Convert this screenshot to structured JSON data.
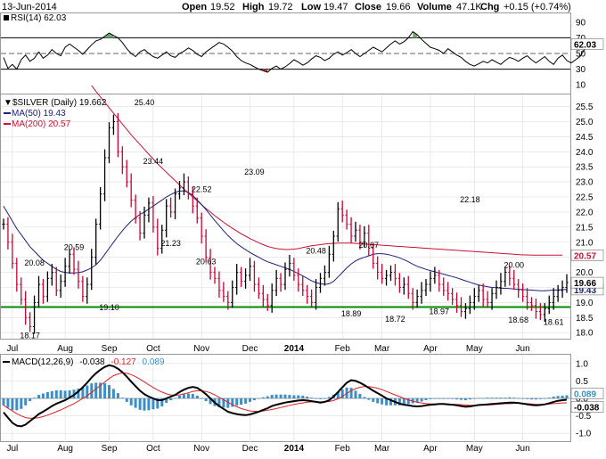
{
  "header": {
    "date": "13-Jun-2014",
    "open_label": "Open",
    "open": "19.52",
    "high_label": "High",
    "high": "19.72",
    "low_label": "Low",
    "low": "19.47",
    "close_label": "Close",
    "close": "19.66",
    "volume_label": "Volume",
    "volume": "47.1K",
    "chg_label": "Chg",
    "chg": "+0.15 (+0.74%)"
  },
  "colors": {
    "price_up": "#000000",
    "price_down": "#cc0033",
    "ma50": "#1a237e",
    "ma200": "#cc1133",
    "support": "#008800",
    "macd_line": "#000000",
    "signal_line": "#dd2222",
    "histogram": "#3a8fc8",
    "rsi_overbought_fill": "#6ea86e",
    "rsi_oversold_fill": "#cc3333",
    "grid": "#dddddd"
  },
  "chart_data": [
    {
      "type": "line",
      "panel": "RSI",
      "legend": "RSI(14) 62.03",
      "current_value_tag": "62.03",
      "y_ticks": [
        "90",
        "70",
        "50",
        "30",
        "10"
      ],
      "reference_lines": [
        70,
        30
      ],
      "midline": 50,
      "ylim": [
        0,
        100
      ],
      "values": [
        45,
        31,
        36,
        30,
        42,
        48,
        40,
        44,
        52,
        44,
        48,
        55,
        50,
        47,
        58,
        62,
        58,
        54,
        49,
        55,
        61,
        66,
        68,
        72,
        76,
        73,
        70,
        64,
        56,
        50,
        46,
        52,
        55,
        50,
        46,
        44,
        48,
        52,
        47,
        45,
        50,
        53,
        57,
        54,
        49,
        46,
        52,
        56,
        60,
        64,
        62,
        58,
        53,
        46,
        41,
        38,
        36,
        33,
        30,
        28,
        26,
        31,
        34,
        30,
        33,
        37,
        42,
        39,
        35,
        38,
        43,
        47,
        45,
        41,
        44,
        49,
        52,
        48,
        51,
        55,
        50,
        46,
        50,
        54,
        58,
        55,
        52,
        57,
        62,
        66,
        62,
        65,
        70,
        78,
        74,
        68,
        63,
        58,
        56,
        54,
        50,
        56,
        52,
        48,
        45,
        40,
        36,
        34,
        37,
        40,
        38,
        42,
        39,
        36,
        41,
        45,
        43,
        40,
        44,
        47,
        42,
        38,
        42,
        46,
        40,
        36,
        44,
        48,
        41,
        38,
        42,
        46,
        55,
        62
      ]
    },
    {
      "type": "line",
      "panel": "price",
      "legend": "$SILVER (Daily) 19.662",
      "ma_legends": [
        "MA(50) 19.43",
        "MA(200) 20.57"
      ],
      "y_ticks": [
        "25.5",
        "25.0",
        "24.5",
        "24.0",
        "23.5",
        "23.0",
        "22.5",
        "22.0",
        "21.5",
        "21.0",
        "20.5",
        "20.0",
        "19.5",
        "19.0",
        "18.5",
        "18.0"
      ],
      "ylim": [
        17.8,
        25.9
      ],
      "price_tags": [
        "19.66",
        "19.43",
        "20.57"
      ],
      "support_level": 18.85,
      "x_month_labels": [
        "Jul",
        "Aug",
        "Sep",
        "Oct",
        "Nov",
        "Dec",
        "2014",
        "Feb",
        "Mar",
        "Apr",
        "May",
        "Jun"
      ],
      "x_month_positions": [
        2,
        14,
        24,
        34,
        45,
        56,
        66,
        77,
        86,
        97,
        107,
        118
      ],
      "close": [
        21.6,
        21.0,
        20.3,
        19.6,
        19.1,
        18.5,
        18.2,
        19.0,
        19.6,
        19.2,
        19.8,
        20.0,
        19.4,
        19.7,
        20.2,
        20.6,
        20.1,
        19.7,
        19.2,
        19.6,
        20.5,
        21.6,
        22.6,
        23.8,
        24.8,
        25.0,
        24.0,
        23.5,
        23.0,
        22.4,
        21.8,
        21.3,
        21.9,
        22.3,
        21.5,
        20.8,
        21.4,
        22.2,
        22.0,
        22.6,
        22.8,
        23.0,
        22.6,
        22.2,
        21.8,
        21.2,
        20.5,
        20.0,
        19.8,
        19.4,
        19.2,
        19.0,
        19.5,
        20.0,
        19.7,
        19.9,
        20.2,
        19.6,
        19.3,
        19.1,
        18.9,
        19.4,
        19.8,
        19.6,
        20.1,
        20.3,
        19.9,
        19.6,
        19.4,
        19.2,
        19.0,
        19.5,
        19.8,
        20.0,
        20.6,
        21.2,
        22.1,
        21.9,
        21.6,
        21.2,
        21.4,
        21.0,
        21.3,
        20.8,
        20.3,
        20.0,
        19.8,
        19.9,
        20.0,
        19.8,
        19.5,
        19.6,
        19.3,
        19.0,
        19.2,
        19.4,
        19.6,
        19.8,
        19.9,
        19.6,
        19.4,
        19.3,
        19.1,
        18.9,
        18.7,
        18.8,
        19.0,
        19.2,
        19.4,
        19.1,
        19.0,
        19.3,
        19.5,
        19.7,
        20.0,
        19.8,
        19.6,
        19.4,
        19.2,
        19.0,
        18.9,
        18.7,
        18.6,
        18.8,
        19.0,
        19.2,
        19.4,
        19.5,
        19.66
      ],
      "ma50": [
        22.2,
        21.95,
        21.7,
        21.45,
        21.25,
        21.05,
        20.85,
        20.7,
        20.55,
        20.4,
        20.3,
        20.2,
        20.1,
        20.03,
        20.0,
        19.98,
        19.98,
        19.99,
        20.02,
        20.08,
        20.15,
        20.25,
        20.4,
        20.6,
        20.8,
        21.0,
        21.2,
        21.38,
        21.55,
        21.7,
        21.82,
        21.92,
        22.0,
        22.1,
        22.2,
        22.3,
        22.4,
        22.5,
        22.58,
        22.65,
        22.7,
        22.7,
        22.65,
        22.55,
        22.4,
        22.25,
        22.08,
        21.9,
        21.72,
        21.55,
        21.38,
        21.22,
        21.08,
        20.95,
        20.85,
        20.75,
        20.66,
        20.58,
        20.5,
        20.42,
        20.35,
        20.3,
        20.25,
        20.2,
        20.15,
        20.1,
        20.03,
        19.96,
        19.88,
        19.8,
        19.72,
        19.66,
        19.62,
        19.6,
        19.62,
        19.7,
        19.85,
        20.0,
        20.15,
        20.28,
        20.38,
        20.45,
        20.5,
        20.55,
        20.6,
        20.62,
        20.62,
        20.6,
        20.57,
        20.53,
        20.48,
        20.42,
        20.35,
        20.27,
        20.2,
        20.15,
        20.1,
        20.06,
        20.02,
        19.98,
        19.94,
        19.9,
        19.86,
        19.82,
        19.77,
        19.72,
        19.67,
        19.62,
        19.58,
        19.55,
        19.52,
        19.5,
        19.49,
        19.48,
        19.47,
        19.46,
        19.45,
        19.44,
        19.43,
        19.42,
        19.41,
        19.4,
        19.39,
        19.39,
        19.4,
        19.41,
        19.42,
        19.43,
        19.43
      ],
      "ma200_start_index": 20,
      "ma200": [
        26.2,
        26.0,
        25.82,
        25.64,
        25.46,
        25.28,
        25.1,
        24.92,
        24.74,
        24.56,
        24.4,
        24.24,
        24.08,
        23.92,
        23.76,
        23.6,
        23.46,
        23.32,
        23.18,
        23.04,
        22.9,
        22.76,
        22.63,
        22.5,
        22.37,
        22.24,
        22.12,
        22.0,
        21.88,
        21.77,
        21.66,
        21.56,
        21.46,
        21.37,
        21.28,
        21.2,
        21.12,
        21.05,
        20.98,
        20.92,
        20.86,
        20.82,
        20.79,
        20.77,
        20.76,
        20.76,
        20.77,
        20.79,
        20.82,
        20.85,
        20.88,
        20.9,
        20.92,
        20.94,
        20.95,
        20.96,
        20.97,
        20.97,
        20.97,
        20.97,
        20.96,
        20.95,
        20.94,
        20.93,
        20.92,
        20.91,
        20.9,
        20.89,
        20.88,
        20.87,
        20.86,
        20.85,
        20.84,
        20.83,
        20.82,
        20.81,
        20.8,
        20.79,
        20.78,
        20.77,
        20.76,
        20.75,
        20.74,
        20.73,
        20.72,
        20.71,
        20.7,
        20.69,
        20.68,
        20.67,
        20.66,
        20.65,
        20.64,
        20.63,
        20.62,
        20.61,
        20.6,
        20.59,
        20.58,
        20.58,
        20.57,
        20.57,
        20.57,
        20.57,
        20.57,
        20.57,
        20.57,
        20.57
      ],
      "annotations": [
        {
          "text": "18.17",
          "i": 6,
          "v": 18.17,
          "pos": "below"
        },
        {
          "text": "20.08",
          "i": 7,
          "v": 20.08,
          "pos": "above"
        },
        {
          "text": "20.59",
          "i": 16,
          "v": 20.59,
          "pos": "above"
        },
        {
          "text": "19.10",
          "i": 24,
          "v": 19.1,
          "pos": "below"
        },
        {
          "text": "25.40",
          "i": 32,
          "v": 25.4,
          "pos": "above"
        },
        {
          "text": "23.44",
          "i": 34,
          "v": 23.44,
          "pos": "above"
        },
        {
          "text": "21.23",
          "i": 38,
          "v": 21.23,
          "pos": "below"
        },
        {
          "text": "22.52",
          "i": 45,
          "v": 22.52,
          "pos": "above"
        },
        {
          "text": "20.63",
          "i": 46,
          "v": 20.63,
          "pos": "below"
        },
        {
          "text": "23.09",
          "i": 57,
          "v": 23.09,
          "pos": "above"
        },
        {
          "text": "20.48",
          "i": 71,
          "v": 20.48,
          "pos": "above"
        },
        {
          "text": "18.89",
          "i": 79,
          "v": 18.89,
          "pos": "below"
        },
        {
          "text": "20.67",
          "i": 83,
          "v": 20.67,
          "pos": "above"
        },
        {
          "text": "18.72",
          "i": 89,
          "v": 18.72,
          "pos": "below"
        },
        {
          "text": "18.97",
          "i": 99,
          "v": 18.97,
          "pos": "below"
        },
        {
          "text": "22.18",
          "i": 106,
          "v": 22.18,
          "pos": "above"
        },
        {
          "text": "20.00",
          "i": 116,
          "v": 20.0,
          "pos": "above"
        },
        {
          "text": "18.68",
          "i": 117,
          "v": 18.68,
          "pos": "below"
        },
        {
          "text": "18.61",
          "i": 125,
          "v": 18.61,
          "pos": "below"
        }
      ]
    },
    {
      "type": "line",
      "panel": "MACD",
      "legend": "MACD(12,26,9)",
      "legend_values": [
        "-0.038",
        "-0.127",
        "0.089"
      ],
      "y_ticks": [
        "1.0",
        "0.5",
        "0.0",
        "-0.5",
        "-1.0"
      ],
      "ylim": [
        -1.25,
        1.25
      ],
      "tags": [
        "0.089",
        "-0.038"
      ],
      "x_month_labels": [
        "Jul",
        "Aug",
        "Sep",
        "Oct",
        "Nov",
        "Dec",
        "2014",
        "Feb",
        "Mar",
        "Apr",
        "May",
        "Jun"
      ],
      "macd": [
        -0.4,
        -0.55,
        -0.7,
        -0.78,
        -0.8,
        -0.75,
        -0.65,
        -0.55,
        -0.45,
        -0.38,
        -0.3,
        -0.22,
        -0.15,
        -0.1,
        -0.05,
        0.02,
        0.1,
        0.2,
        0.32,
        0.45,
        0.6,
        0.72,
        0.82,
        0.9,
        0.95,
        0.92,
        0.85,
        0.75,
        0.62,
        0.48,
        0.35,
        0.22,
        0.12,
        0.05,
        0.0,
        -0.05,
        -0.05,
        0.0,
        0.05,
        0.1,
        0.18,
        0.25,
        0.3,
        0.33,
        0.3,
        0.22,
        0.12,
        0.0,
        -0.12,
        -0.22,
        -0.3,
        -0.38,
        -0.42,
        -0.45,
        -0.47,
        -0.48,
        -0.46,
        -0.42,
        -0.38,
        -0.33,
        -0.28,
        -0.22,
        -0.18,
        -0.15,
        -0.12,
        -0.1,
        -0.08,
        -0.06,
        -0.05,
        -0.06,
        -0.08,
        -0.1,
        -0.12,
        -0.1,
        -0.05,
        0.05,
        0.18,
        0.32,
        0.45,
        0.52,
        0.5,
        0.45,
        0.38,
        0.3,
        0.22,
        0.15,
        0.08,
        0.0,
        -0.05,
        -0.1,
        -0.15,
        -0.18,
        -0.2,
        -0.22,
        -0.23,
        -0.22,
        -0.2,
        -0.18,
        -0.17,
        -0.16,
        -0.16,
        -0.17,
        -0.18,
        -0.2,
        -0.22,
        -0.24,
        -0.23,
        -0.21,
        -0.19,
        -0.18,
        -0.17,
        -0.16,
        -0.15,
        -0.14,
        -0.13,
        -0.12,
        -0.12,
        -0.13,
        -0.15,
        -0.17,
        -0.19,
        -0.2,
        -0.19,
        -0.17,
        -0.14,
        -0.1,
        -0.07,
        -0.05,
        -0.038
      ],
      "signal": [
        -0.2,
        -0.28,
        -0.36,
        -0.44,
        -0.5,
        -0.55,
        -0.57,
        -0.57,
        -0.55,
        -0.52,
        -0.48,
        -0.43,
        -0.38,
        -0.33,
        -0.27,
        -0.21,
        -0.15,
        -0.08,
        0.0,
        0.08,
        0.17,
        0.27,
        0.37,
        0.47,
        0.57,
        0.65,
        0.7,
        0.73,
        0.72,
        0.68,
        0.62,
        0.55,
        0.47,
        0.39,
        0.31,
        0.24,
        0.18,
        0.13,
        0.1,
        0.09,
        0.1,
        0.13,
        0.16,
        0.2,
        0.22,
        0.22,
        0.2,
        0.16,
        0.1,
        0.03,
        -0.04,
        -0.11,
        -0.18,
        -0.24,
        -0.29,
        -0.33,
        -0.36,
        -0.37,
        -0.37,
        -0.36,
        -0.34,
        -0.32,
        -0.29,
        -0.26,
        -0.23,
        -0.2,
        -0.17,
        -0.15,
        -0.13,
        -0.11,
        -0.1,
        -0.1,
        -0.1,
        -0.1,
        -0.09,
        -0.06,
        -0.01,
        0.06,
        0.14,
        0.22,
        0.28,
        0.32,
        0.34,
        0.34,
        0.32,
        0.29,
        0.25,
        0.2,
        0.15,
        0.1,
        0.05,
        0.0,
        -0.04,
        -0.08,
        -0.11,
        -0.13,
        -0.15,
        -0.16,
        -0.16,
        -0.16,
        -0.16,
        -0.16,
        -0.17,
        -0.17,
        -0.18,
        -0.19,
        -0.2,
        -0.2,
        -0.2,
        -0.19,
        -0.19,
        -0.18,
        -0.17,
        -0.16,
        -0.15,
        -0.15,
        -0.14,
        -0.14,
        -0.14,
        -0.15,
        -0.16,
        -0.17,
        -0.17,
        -0.17,
        -0.16,
        -0.15,
        -0.14,
        -0.13,
        -0.127
      ]
    }
  ]
}
